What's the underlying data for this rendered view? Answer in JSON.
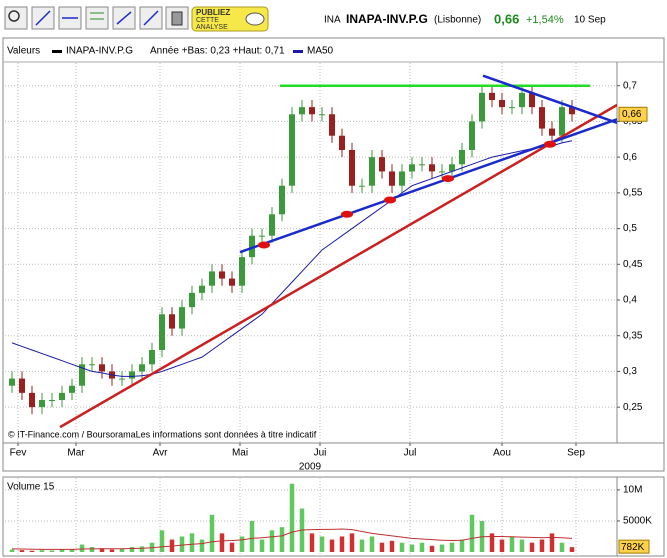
{
  "header": {
    "code": "INA",
    "name": "INAPA-INV.P.G",
    "market": "(Lisbonne)",
    "price": "0,66",
    "change": "+1,54%",
    "date": "10 Sep"
  },
  "toolbar": {
    "publish_button": [
      "PUBLIEZ",
      "CETTE",
      "ANALYSE"
    ]
  },
  "chart_data": [
    {
      "type": "candlestick",
      "legend_label": "Valeurs",
      "range_text": "Année +Bas: 0,23 +Haut: 0,71",
      "note": "© IT-Finance.com / BoursoramaLes informations sont données à titre indicatif",
      "x": [
        0,
        1,
        2,
        3,
        4,
        5,
        6,
        7,
        8,
        9,
        10,
        11,
        12,
        13,
        14,
        15,
        16,
        17,
        18,
        19,
        20,
        21,
        22,
        23,
        24,
        25,
        26,
        27,
        28,
        29,
        30,
        31,
        32,
        33,
        34,
        35,
        36,
        37,
        38,
        39,
        40,
        41,
        42,
        43,
        44,
        45,
        46,
        47,
        48,
        49,
        50,
        51,
        52,
        53,
        54,
        55,
        56
      ],
      "xlim": [
        -0.7,
        60.5
      ],
      "xticks": [
        {
          "value": 0.6,
          "label": "Fev"
        },
        {
          "value": 6.4,
          "label": "Mar"
        },
        {
          "value": 14.8,
          "label": "Avr"
        },
        {
          "value": 22.8,
          "label": "Mai"
        },
        {
          "value": 30.8,
          "label": "Jui"
        },
        {
          "value": 39.8,
          "label": "Jul"
        },
        {
          "value": 49,
          "label": "Aou"
        },
        {
          "value": 56.4,
          "label": "Sep"
        }
      ],
      "x_year_label": "2009",
      "ylim": [
        0.204,
        0.722
      ],
      "yticks": [
        {
          "value": 0.25,
          "label": "0,25"
        },
        {
          "value": 0.3,
          "label": "0,3"
        },
        {
          "value": 0.35,
          "label": "0,35"
        },
        {
          "value": 0.4,
          "label": "0,4"
        },
        {
          "value": 0.45,
          "label": "0,45"
        },
        {
          "value": 0.5,
          "label": "0,5"
        },
        {
          "value": 0.55,
          "label": "0,55"
        },
        {
          "value": 0.6,
          "label": "0,6"
        },
        {
          "value": 0.65,
          "label": "0,65"
        },
        {
          "value": 0.7,
          "label": "0,7"
        }
      ],
      "grid": true,
      "price": {
        "name": "INAPA-INV.P.G",
        "color": "#000000",
        "up_color": "#3c9a3c",
        "down_color": "#9a2020",
        "open": [
          0.28,
          0.29,
          0.27,
          0.25,
          0.26,
          0.26,
          0.27,
          0.28,
          0.31,
          0.31,
          0.3,
          0.29,
          0.29,
          0.3,
          0.31,
          0.33,
          0.38,
          0.36,
          0.39,
          0.41,
          0.42,
          0.44,
          0.43,
          0.42,
          0.46,
          0.49,
          0.49,
          0.52,
          0.56,
          0.66,
          0.67,
          0.66,
          0.66,
          0.63,
          0.61,
          0.56,
          0.56,
          0.6,
          0.58,
          0.56,
          0.58,
          0.59,
          0.59,
          0.58,
          0.58,
          0.59,
          0.61,
          0.65,
          0.69,
          0.68,
          0.67,
          0.67,
          0.69,
          0.67,
          0.64,
          0.63,
          0.67
        ],
        "high": [
          0.3,
          0.3,
          0.28,
          0.27,
          0.27,
          0.28,
          0.29,
          0.32,
          0.32,
          0.32,
          0.31,
          0.3,
          0.31,
          0.32,
          0.34,
          0.39,
          0.39,
          0.4,
          0.42,
          0.43,
          0.45,
          0.45,
          0.44,
          0.47,
          0.5,
          0.5,
          0.53,
          0.57,
          0.67,
          0.68,
          0.68,
          0.67,
          0.67,
          0.64,
          0.62,
          0.57,
          0.61,
          0.61,
          0.59,
          0.59,
          0.6,
          0.6,
          0.6,
          0.59,
          0.6,
          0.62,
          0.66,
          0.7,
          0.7,
          0.69,
          0.68,
          0.7,
          0.7,
          0.68,
          0.65,
          0.68,
          0.68
        ],
        "low": [
          0.27,
          0.26,
          0.24,
          0.24,
          0.25,
          0.25,
          0.26,
          0.27,
          0.3,
          0.29,
          0.28,
          0.28,
          0.28,
          0.29,
          0.3,
          0.32,
          0.35,
          0.35,
          0.38,
          0.4,
          0.41,
          0.42,
          0.41,
          0.41,
          0.45,
          0.48,
          0.48,
          0.51,
          0.55,
          0.65,
          0.65,
          0.65,
          0.62,
          0.6,
          0.55,
          0.55,
          0.55,
          0.57,
          0.55,
          0.55,
          0.57,
          0.58,
          0.57,
          0.57,
          0.57,
          0.58,
          0.6,
          0.64,
          0.67,
          0.66,
          0.66,
          0.66,
          0.66,
          0.63,
          0.62,
          0.62,
          0.65
        ],
        "close": [
          0.29,
          0.27,
          0.25,
          0.26,
          0.26,
          0.27,
          0.28,
          0.31,
          0.31,
          0.3,
          0.29,
          0.29,
          0.3,
          0.31,
          0.33,
          0.38,
          0.36,
          0.39,
          0.41,
          0.42,
          0.44,
          0.43,
          0.42,
          0.46,
          0.49,
          0.49,
          0.52,
          0.56,
          0.66,
          0.67,
          0.66,
          0.66,
          0.63,
          0.61,
          0.56,
          0.56,
          0.6,
          0.58,
          0.56,
          0.58,
          0.59,
          0.59,
          0.58,
          0.58,
          0.59,
          0.61,
          0.65,
          0.69,
          0.68,
          0.67,
          0.67,
          0.69,
          0.67,
          0.64,
          0.63,
          0.67,
          0.66
        ]
      },
      "series": [
        {
          "name": "MA50",
          "color": "#1a1aa8",
          "values": [
            0.34,
            0.335,
            0.33,
            0.325,
            0.32,
            0.315,
            0.31,
            0.305,
            0.3,
            0.298,
            0.295,
            0.293,
            0.293,
            0.294,
            0.296,
            0.3,
            0.305,
            0.31,
            0.315,
            0.32,
            0.33,
            0.34,
            0.35,
            0.36,
            0.37,
            0.38,
            0.395,
            0.41,
            0.425,
            0.44,
            0.455,
            0.47,
            0.48,
            0.49,
            0.5,
            0.51,
            0.52,
            0.53,
            0.54,
            0.55,
            0.56,
            0.565,
            0.57,
            0.575,
            0.58,
            0.585,
            0.59,
            0.595,
            0.6,
            0.603,
            0.606,
            0.609,
            0.612,
            0.614,
            0.616,
            0.62,
            0.623
          ]
        }
      ],
      "current_price": {
        "value": 0.66,
        "label": "0,66"
      },
      "trend_lines": [
        {
          "color": "#22dd22",
          "x": [
            26.8,
            57.8
          ],
          "y": [
            0.7,
            0.7
          ]
        },
        {
          "color": "#cc1f1f",
          "x": [
            4.8,
            60.5
          ],
          "y": [
            0.222,
            0.673
          ]
        },
        {
          "color": "#1a2acc",
          "x": [
            22.8,
            60.5
          ],
          "y": [
            0.467,
            0.653
          ]
        },
        {
          "color": "#1a2acc",
          "x": [
            47.1,
            60.5
          ],
          "y": [
            0.714,
            0.648
          ]
        }
      ],
      "markers": {
        "color": "#e01010",
        "x": [
          25.2,
          33.5,
          37.8,
          43.6,
          53.8
        ],
        "y": [
          0.477,
          0.52,
          0.54,
          0.57,
          0.618
        ]
      }
    },
    {
      "type": "bar",
      "title": "Volume 15",
      "ylim": [
        0,
        11600000
      ],
      "yticks": [
        {
          "value": 5000000,
          "label": "5000K"
        },
        {
          "value": 10000000,
          "label": "10M"
        }
      ],
      "grid": true,
      "values": [
        400000,
        300000,
        200000,
        300000,
        250000,
        400000,
        500000,
        1200000,
        800000,
        600000,
        400000,
        500000,
        800000,
        900000,
        1500000,
        3500000,
        2000000,
        2500000,
        3000000,
        2000000,
        6000000,
        3000000,
        1500000,
        2500000,
        5000000,
        2000000,
        3500000,
        4000000,
        11000000,
        7000000,
        3000000,
        2500000,
        2000000,
        2500000,
        3000000,
        2000000,
        2500000,
        1500000,
        1800000,
        1500000,
        1200000,
        1500000,
        1000000,
        1200000,
        1500000,
        2000000,
        6000000,
        5000000,
        3000000,
        2000000,
        2500000,
        2000000,
        1500000,
        2000000,
        3000000,
        1500000,
        782000
      ],
      "up_color": "#5fc85f",
      "down_color": "#d03030",
      "series": [
        {
          "color": "#c03030",
          "values": [
            500000,
            480000,
            450000,
            430000,
            420000,
            420000,
            430000,
            480000,
            500000,
            520000,
            520000,
            530000,
            560000,
            600000,
            680000,
            850000,
            950000,
            1100000,
            1250000,
            1350000,
            1650000,
            1800000,
            1850000,
            1950000,
            2200000,
            2300000,
            2450000,
            2600000,
            3200000,
            3550000,
            3600000,
            3650000,
            3650000,
            3700000,
            3600000,
            3300000,
            3000000,
            2800000,
            2600000,
            2400000,
            2200000,
            2100000,
            2000000,
            1900000,
            1850000,
            1900000,
            2200000,
            2450000,
            2500000,
            2500000,
            2450000,
            2400000,
            2350000,
            2300000,
            2350000,
            2300000,
            2200000
          ]
        }
      ],
      "current_volume": {
        "value": 782000,
        "label": "782K"
      }
    }
  ]
}
